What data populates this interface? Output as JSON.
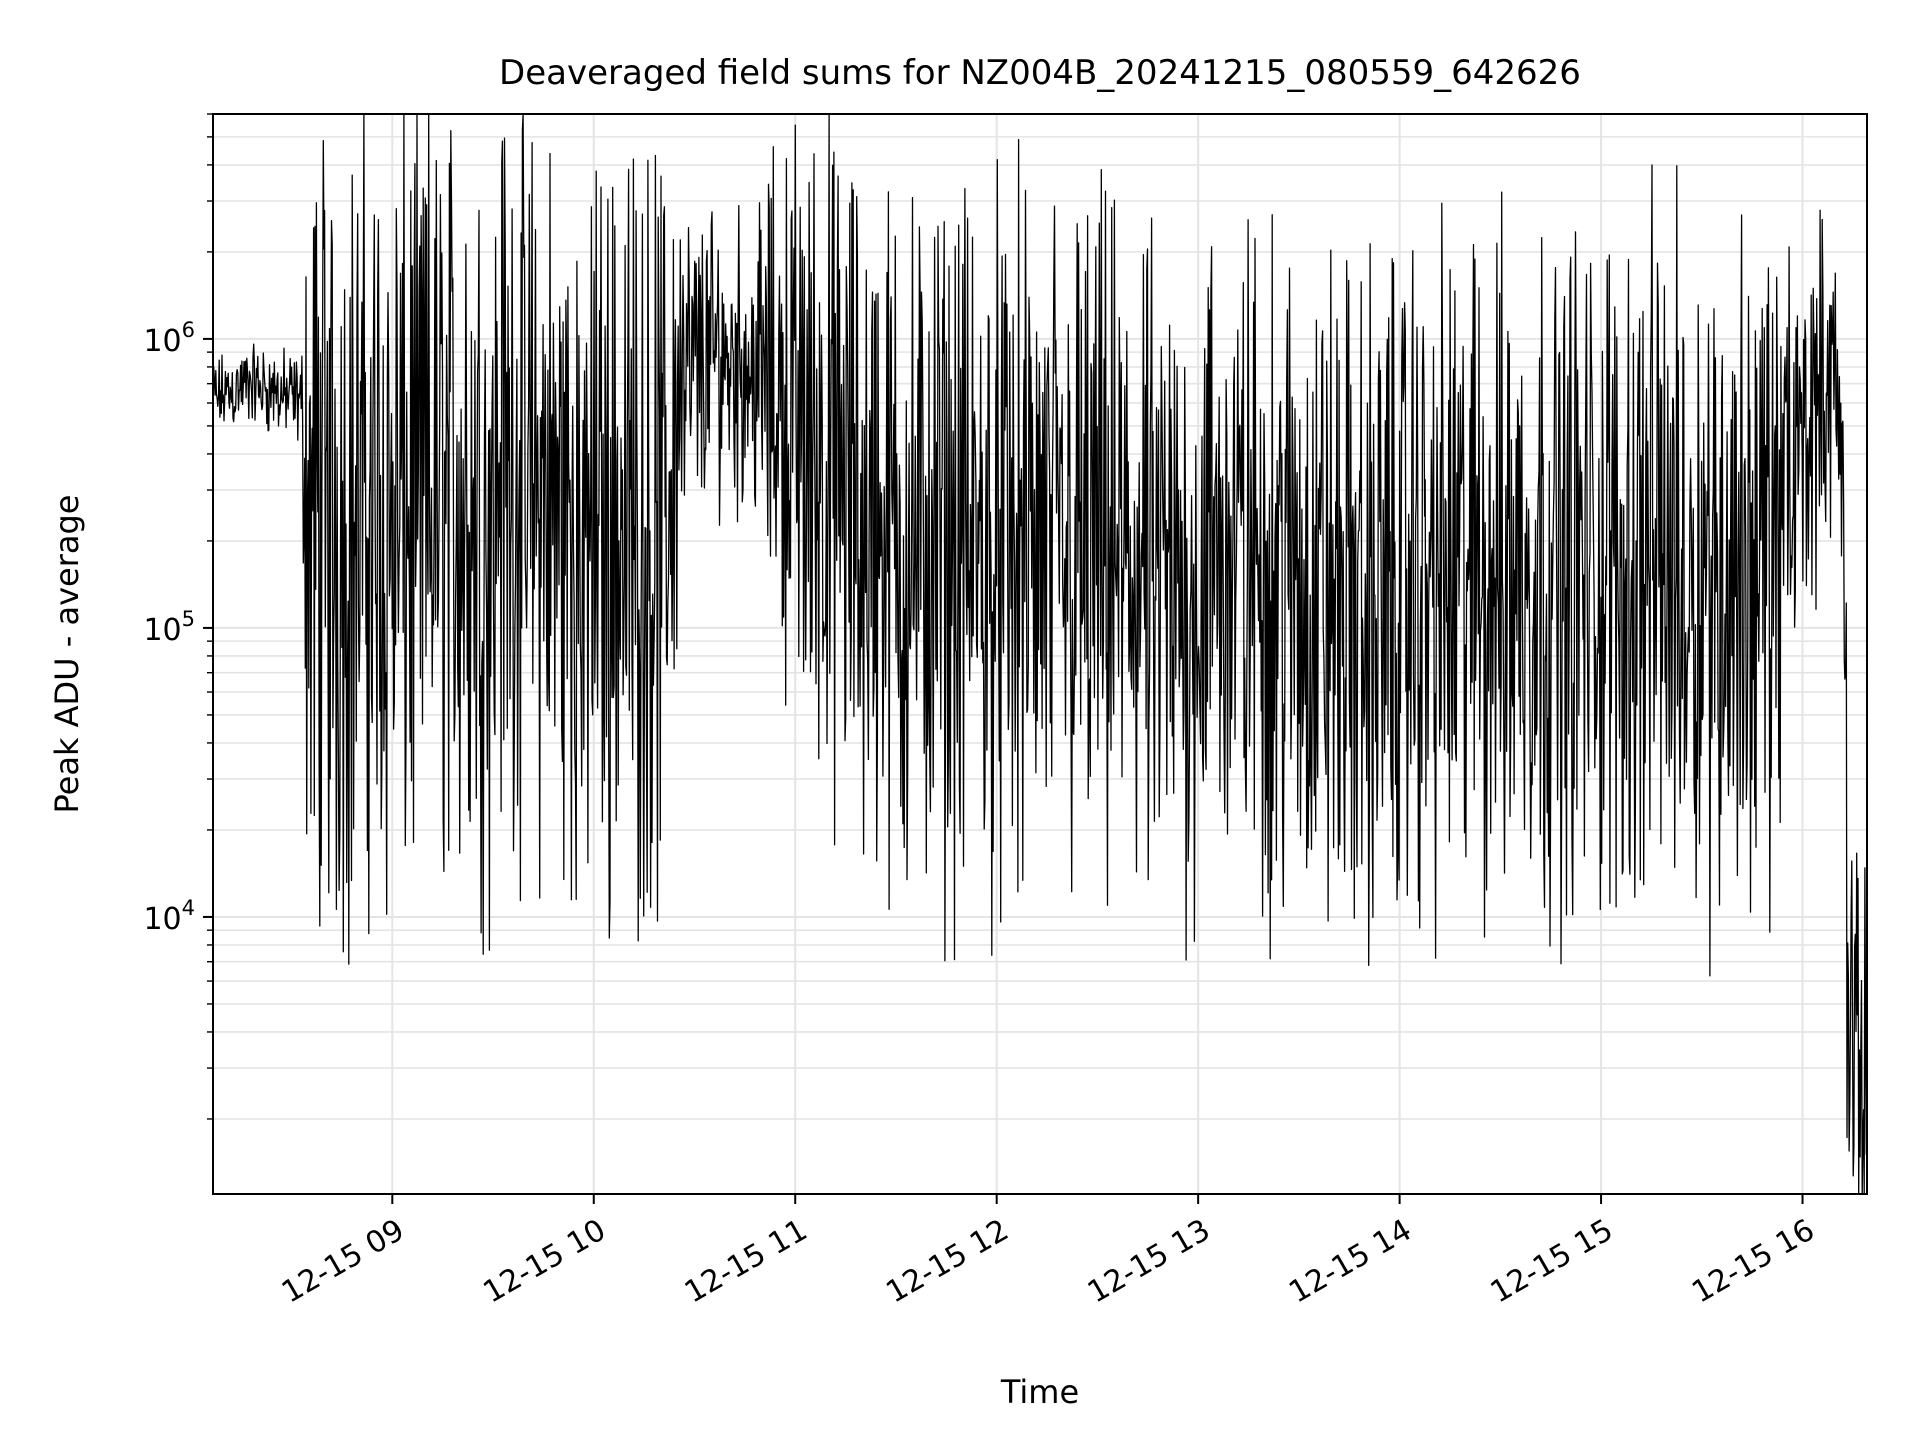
{
  "chart_data": {
    "type": "line",
    "title": "Deaveraged field sums for NZ004B_20241215_080559_642626",
    "xlabel": "Time",
    "ylabel": "Peak ADU - average",
    "x_ticks": [
      "12-15 09",
      "12-15 10",
      "12-15 11",
      "12-15 12",
      "12-15 13",
      "12-15 14",
      "12-15 15",
      "12-15 16"
    ],
    "x_tick_hours": [
      9,
      10,
      11,
      12,
      13,
      14,
      15,
      16
    ],
    "xlim_hours": [
      8.11,
      16.32
    ],
    "y_scale": "log",
    "ylim": [
      1100,
      6000000
    ],
    "y_ticks": [
      {
        "value": 10000,
        "base": "10",
        "exp": "4"
      },
      {
        "value": 100000,
        "base": "10",
        "exp": "5"
      },
      {
        "value": 1000000,
        "base": "10",
        "exp": "6"
      }
    ],
    "grid": true,
    "line_color": "#000000",
    "grid_color": "#e4e4e4",
    "series_envelope": {
      "hours": [
        8.11,
        8.3,
        8.55,
        8.58,
        9.0,
        9.3,
        9.5,
        9.55,
        9.7,
        9.95,
        10.2,
        10.35,
        10.45,
        10.6,
        10.8,
        11.0,
        11.3,
        11.6,
        11.9,
        12.1,
        12.4,
        12.7,
        12.9,
        13.1,
        13.4,
        13.6,
        13.8,
        14.1,
        14.4,
        14.7,
        15.0,
        15.3,
        15.6,
        15.85,
        15.95,
        16.1,
        16.15,
        16.2,
        16.22,
        16.26,
        16.32
      ],
      "center": [
        620000,
        700000,
        600000,
        220000,
        230000,
        300000,
        230000,
        400000,
        280000,
        220000,
        230000,
        200000,
        700000,
        900000,
        800000,
        500000,
        250000,
        180000,
        180000,
        180000,
        180000,
        150000,
        110000,
        180000,
        150000,
        130000,
        110000,
        140000,
        150000,
        160000,
        150000,
        180000,
        150000,
        180000,
        320000,
        700000,
        750000,
        280000,
        8000,
        3500,
        2800
      ],
      "spread": [
        0.35,
        0.35,
        0.4,
        3.5,
        3.4,
        3.3,
        3.3,
        3.0,
        3.2,
        3.3,
        3.2,
        3.2,
        1.5,
        1.2,
        1.3,
        2.6,
        3.0,
        3.0,
        3.0,
        3.0,
        3.0,
        2.9,
        2.8,
        2.8,
        2.9,
        2.9,
        2.9,
        2.9,
        2.9,
        2.9,
        2.9,
        2.9,
        2.9,
        2.9,
        1.8,
        1.4,
        1.4,
        1.0,
        1.8,
        1.6,
        1.5
      ]
    },
    "spikes": [
      {
        "hour": 9.545,
        "value": 4100000
      },
      {
        "hour": 10.43,
        "value": 2200000
      },
      {
        "hour": 9.57,
        "value": 45000
      },
      {
        "hour": 9.95,
        "value": 38000
      },
      {
        "hour": 14.24,
        "value": 37000
      },
      {
        "hour": 13.52,
        "value": 39000
      },
      {
        "hour": 16.23,
        "value": 1550
      }
    ]
  }
}
